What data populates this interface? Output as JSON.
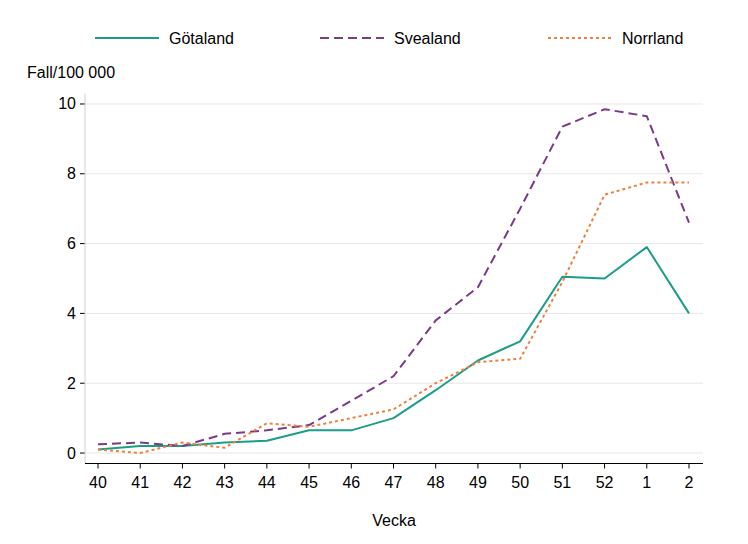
{
  "chart_data": {
    "type": "line",
    "y_label": "Fall/100 000",
    "x_label": "Vecka",
    "categories": [
      "40",
      "41",
      "42",
      "43",
      "44",
      "45",
      "46",
      "47",
      "48",
      "49",
      "50",
      "51",
      "52",
      "1",
      "2"
    ],
    "series": [
      {
        "name": "Götaland",
        "color": "#1b9e87",
        "line_style": "solid",
        "values": [
          0.1,
          0.2,
          0.2,
          0.3,
          0.35,
          0.65,
          0.65,
          1.0,
          1.8,
          2.65,
          3.2,
          5.05,
          5.0,
          5.9,
          4.0
        ]
      },
      {
        "name": "Svealand",
        "color": "#7a3a8a",
        "line_style": "dashed",
        "values": [
          0.25,
          0.3,
          0.2,
          0.55,
          0.65,
          0.8,
          1.5,
          2.2,
          3.8,
          4.75,
          7.0,
          9.35,
          9.85,
          9.65,
          6.6
        ]
      },
      {
        "name": "Norrland",
        "color": "#f07f3c",
        "line_style": "dotted",
        "values": [
          0.1,
          0.0,
          0.3,
          0.15,
          0.85,
          0.75,
          1.0,
          1.25,
          2.0,
          2.6,
          2.7,
          4.9,
          7.4,
          7.75,
          7.75
        ]
      }
    ],
    "ylim": [
      -0.3,
      10.3
    ],
    "yticks": [
      0,
      2,
      4,
      6,
      8,
      10
    ],
    "grid": true,
    "legend": "top"
  }
}
